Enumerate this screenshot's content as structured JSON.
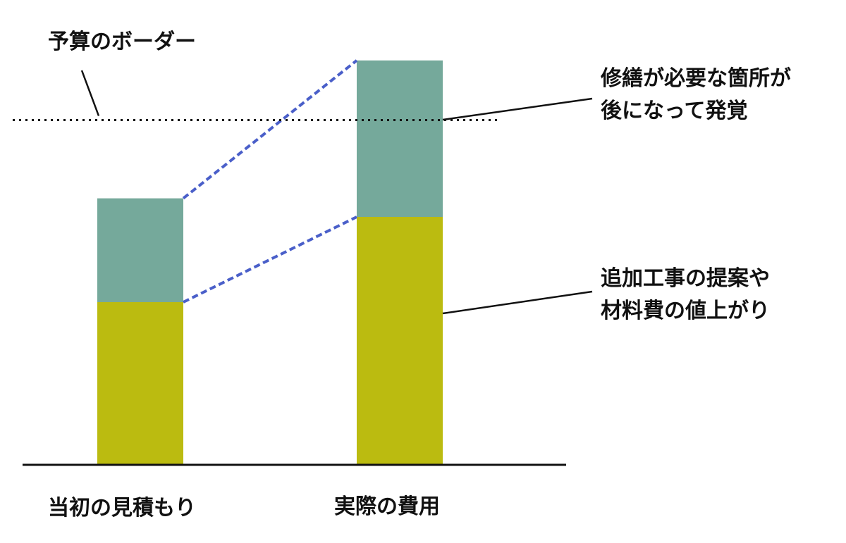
{
  "chart_data": {
    "type": "bar",
    "stacked": true,
    "categories": [
      "当初の見積もり",
      "実際の費用"
    ],
    "series": [
      {
        "values": [
          210,
          320
        ],
        "color": "#bbbb10"
      },
      {
        "values": [
          134,
          202
        ],
        "color": "#75a99b"
      }
    ],
    "reference_line": {
      "value": 445,
      "label": "予算のボーダー",
      "style": "dotted",
      "color": "#111111"
    },
    "connector_color": "#4a5fc9",
    "annotations": {
      "top_segment": [
        "修繕が必要な箇所が",
        "後になって発覚"
      ],
      "bottom_segment": [
        "追加工事の提案や",
        "材料費の値上がり"
      ]
    },
    "ylim": [
      0,
      520
    ],
    "grid": false,
    "legend": "none",
    "axis_color": "#111111"
  }
}
